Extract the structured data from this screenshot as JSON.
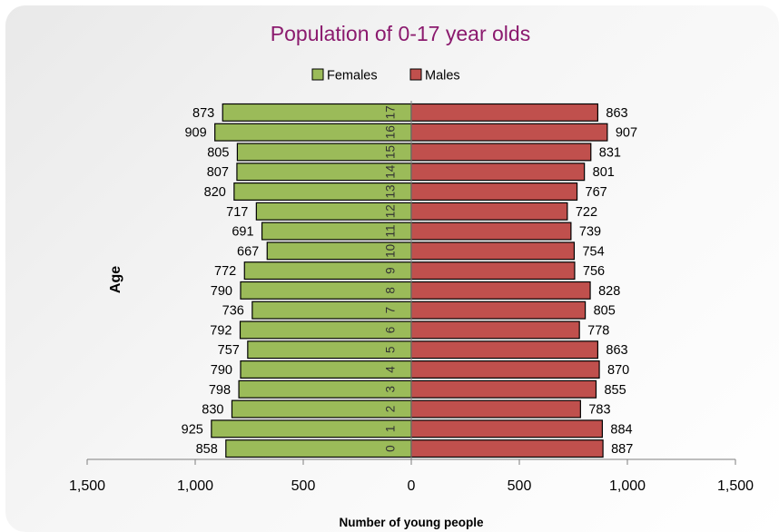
{
  "chart_data": {
    "type": "bar",
    "orientation": "horizontal",
    "title": "Population of 0-17 year olds",
    "xlabel": "Number of young people",
    "ylabel": "Age",
    "categories": [
      "0",
      "1",
      "2",
      "3",
      "4",
      "5",
      "6",
      "7",
      "8",
      "9",
      "10",
      "11",
      "12",
      "13",
      "14",
      "15",
      "16",
      "17"
    ],
    "series": [
      {
        "name": "Females",
        "color": "#9bbb59",
        "side": "left",
        "values": [
          858,
          925,
          830,
          798,
          790,
          757,
          792,
          736,
          790,
          772,
          667,
          691,
          717,
          820,
          807,
          805,
          909,
          873
        ]
      },
      {
        "name": "Males",
        "color": "#c0504d",
        "side": "right",
        "values": [
          887,
          884,
          783,
          855,
          870,
          863,
          778,
          805,
          828,
          756,
          754,
          739,
          722,
          767,
          801,
          831,
          907,
          863
        ]
      }
    ],
    "xlim": [
      -1500,
      1500
    ],
    "x_ticks": [
      -1500,
      -1000,
      -500,
      0,
      500,
      1000,
      1500
    ],
    "x_tick_labels": [
      "1,500",
      "1,000",
      "500",
      "0",
      "500",
      "1,000",
      "1,500"
    ],
    "legend_position": "top",
    "grid": false
  }
}
